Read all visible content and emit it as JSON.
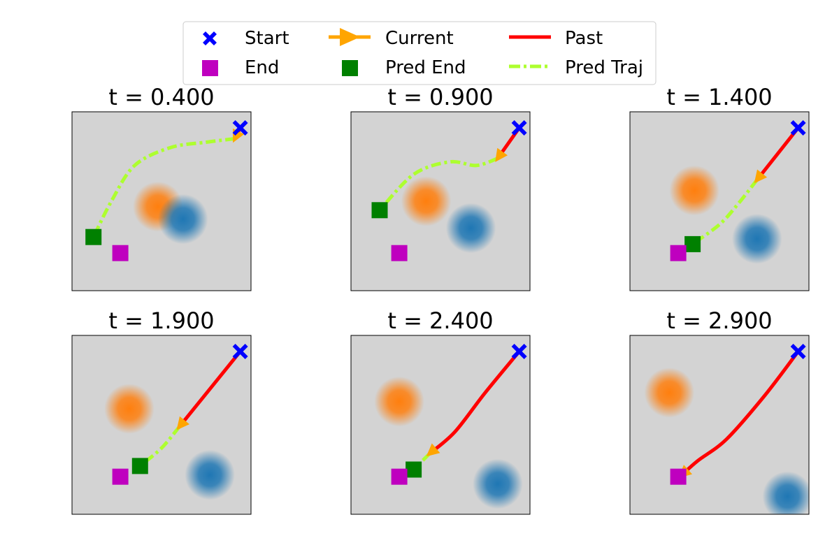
{
  "legend": {
    "entries": [
      {
        "key": "start",
        "label": "Start",
        "color": "#0000ff",
        "marker": "x-marker"
      },
      {
        "key": "current",
        "label": "Current",
        "color": "#ffa500",
        "marker": "arrow-line"
      },
      {
        "key": "past",
        "label": "Past",
        "color": "#ff0000",
        "marker": "solid-line"
      },
      {
        "key": "end",
        "label": "End",
        "color": "#bf00bf",
        "marker": "square"
      },
      {
        "key": "pred_end",
        "label": "Pred End",
        "color": "#008000",
        "marker": "square"
      },
      {
        "key": "pred_traj",
        "label": "Pred Traj",
        "color": "#adff2f",
        "marker": "dash-dot-line"
      }
    ]
  },
  "colors": {
    "background": "#d3d3d3",
    "obstacle_orange": "#ff7f0e",
    "obstacle_blue": "#1f77b4"
  },
  "chart_data": [
    {
      "type": "scatter",
      "title": "t = 0.400",
      "xlim": [
        0,
        10
      ],
      "ylim": [
        0,
        10
      ],
      "ticks": false,
      "start": [
        9.4,
        9.1
      ],
      "end": [
        2.7,
        2.1
      ],
      "current": [
        9.1,
        8.5
      ],
      "pred_end": [
        1.2,
        3.0
      ],
      "past": [
        [
          9.4,
          9.1
        ],
        [
          9.1,
          8.5
        ]
      ],
      "pred_traj": [
        [
          9.1,
          8.5
        ],
        [
          7.5,
          8.3
        ],
        [
          5.5,
          8.0
        ],
        [
          3.5,
          7.0
        ],
        [
          2.2,
          5.0
        ],
        [
          1.2,
          3.0
        ]
      ],
      "obstacles": [
        {
          "color": "orange",
          "center": [
            4.8,
            4.7
          ],
          "radius": 1.4
        },
        {
          "color": "blue",
          "center": [
            6.2,
            4.0
          ],
          "radius": 1.4
        }
      ]
    },
    {
      "type": "scatter",
      "title": "t = 0.900",
      "xlim": [
        0,
        10
      ],
      "ylim": [
        0,
        10
      ],
      "ticks": false,
      "start": [
        9.4,
        9.1
      ],
      "end": [
        2.7,
        2.1
      ],
      "current": [
        8.2,
        7.4
      ],
      "pred_end": [
        1.6,
        4.5
      ],
      "past": [
        [
          9.4,
          9.1
        ],
        [
          8.2,
          7.4
        ]
      ],
      "pred_traj": [
        [
          8.2,
          7.4
        ],
        [
          7.0,
          7.0
        ],
        [
          5.5,
          7.2
        ],
        [
          3.5,
          6.5
        ],
        [
          1.6,
          4.5
        ]
      ],
      "obstacles": [
        {
          "color": "orange",
          "center": [
            4.2,
            5.0
          ],
          "radius": 1.4
        },
        {
          "color": "blue",
          "center": [
            6.7,
            3.5
          ],
          "radius": 1.4
        }
      ]
    },
    {
      "type": "scatter",
      "title": "t = 1.400",
      "xlim": [
        0,
        10
      ],
      "ylim": [
        0,
        10
      ],
      "ticks": false,
      "start": [
        9.4,
        9.1
      ],
      "end": [
        2.7,
        2.1
      ],
      "current": [
        7.1,
        6.2
      ],
      "pred_end": [
        3.5,
        2.6
      ],
      "past": [
        [
          9.4,
          9.1
        ],
        [
          7.1,
          6.2
        ]
      ],
      "pred_traj": [
        [
          7.1,
          6.2
        ],
        [
          6.0,
          4.8
        ],
        [
          5.0,
          3.7
        ],
        [
          3.5,
          2.6
        ]
      ],
      "obstacles": [
        {
          "color": "orange",
          "center": [
            3.6,
            5.6
          ],
          "radius": 1.4
        },
        {
          "color": "blue",
          "center": [
            7.1,
            2.9
          ],
          "radius": 1.4
        }
      ]
    },
    {
      "type": "scatter",
      "title": "t = 1.900",
      "xlim": [
        0,
        10
      ],
      "ylim": [
        0,
        10
      ],
      "ticks": false,
      "start": [
        9.4,
        9.1
      ],
      "end": [
        2.7,
        2.1
      ],
      "current": [
        6.0,
        4.9
      ],
      "pred_end": [
        3.8,
        2.7
      ],
      "past": [
        [
          9.4,
          9.1
        ],
        [
          6.0,
          4.9
        ]
      ],
      "pred_traj": [
        [
          6.0,
          4.9
        ],
        [
          5.0,
          3.7
        ],
        [
          3.8,
          2.7
        ]
      ],
      "obstacles": [
        {
          "color": "orange",
          "center": [
            3.2,
            5.9
          ],
          "radius": 1.4
        },
        {
          "color": "blue",
          "center": [
            7.7,
            2.2
          ],
          "radius": 1.4
        }
      ]
    },
    {
      "type": "scatter",
      "title": "t = 2.400",
      "xlim": [
        0,
        10
      ],
      "ylim": [
        0,
        10
      ],
      "ticks": false,
      "start": [
        9.4,
        9.1
      ],
      "end": [
        2.7,
        2.1
      ],
      "current": [
        4.4,
        3.4
      ],
      "pred_end": [
        3.5,
        2.5
      ],
      "past": [
        [
          9.4,
          9.1
        ],
        [
          7.5,
          6.8
        ],
        [
          5.8,
          4.6
        ],
        [
          4.4,
          3.4
        ]
      ],
      "pred_traj": [
        [
          4.4,
          3.4
        ],
        [
          3.5,
          2.5
        ]
      ],
      "obstacles": [
        {
          "color": "orange",
          "center": [
            2.7,
            6.3
          ],
          "radius": 1.4
        },
        {
          "color": "blue",
          "center": [
            8.2,
            1.7
          ],
          "radius": 1.4
        }
      ]
    },
    {
      "type": "scatter",
      "title": "t = 2.900",
      "xlim": [
        0,
        10
      ],
      "ylim": [
        0,
        10
      ],
      "ticks": false,
      "start": [
        9.4,
        9.1
      ],
      "end": [
        2.7,
        2.1
      ],
      "current": [
        2.9,
        2.2
      ],
      "pred_end": null,
      "past": [
        [
          9.4,
          9.1
        ],
        [
          7.5,
          6.6
        ],
        [
          5.4,
          4.2
        ],
        [
          3.8,
          3.0
        ],
        [
          2.9,
          2.2
        ]
      ],
      "pred_traj": [],
      "obstacles": [
        {
          "color": "orange",
          "center": [
            2.2,
            6.8
          ],
          "radius": 1.4
        },
        {
          "color": "blue",
          "center": [
            8.8,
            1.0
          ],
          "radius": 1.4
        }
      ]
    }
  ]
}
